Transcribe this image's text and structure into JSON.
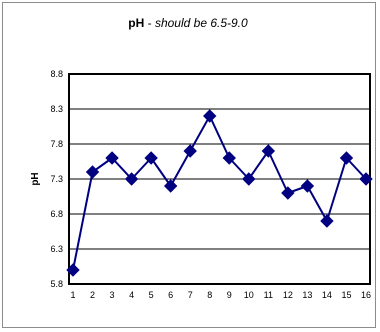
{
  "chart_data": {
    "type": "line",
    "title": "pH",
    "title_separator": " - ",
    "subtitle": "should be 6.5-9.0",
    "xlabel": "",
    "ylabel": "pH",
    "x": [
      1,
      2,
      3,
      4,
      5,
      6,
      7,
      8,
      9,
      10,
      11,
      12,
      13,
      14,
      15,
      16
    ],
    "x_tick_labels": [
      "1",
      "2",
      "3",
      "4",
      "5",
      "6",
      "7",
      "8",
      "9",
      "10",
      "11",
      "12",
      "13",
      "14",
      "15",
      "16"
    ],
    "series": [
      {
        "values": [
          6.0,
          7.4,
          7.6,
          7.3,
          7.6,
          7.2,
          7.7,
          8.2,
          7.6,
          7.3,
          7.7,
          7.1,
          7.2,
          6.7,
          7.6,
          7.3
        ],
        "color": "#000080",
        "marker": "diamond"
      }
    ],
    "ylim": [
      5.8,
      8.8
    ],
    "y_ticks": [
      5.8,
      6.3,
      6.8,
      7.3,
      7.8,
      8.3,
      8.8
    ],
    "y_tick_labels": [
      "5.8",
      "6.3",
      "6.8",
      "7.3",
      "7.8",
      "8.3",
      "8.8"
    ],
    "grid": "horizontal",
    "legend": "none",
    "colors": {
      "series": "#000080",
      "gridline": "#000000",
      "plot_border": "#000000",
      "frame_border": "#8c8c8c"
    }
  }
}
